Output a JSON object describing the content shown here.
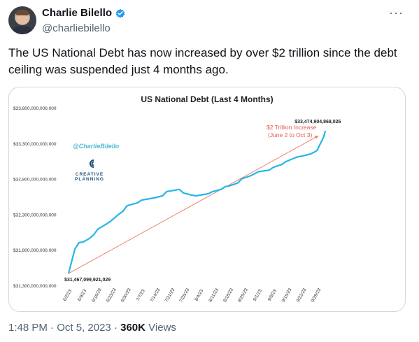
{
  "author": {
    "display_name": "Charlie Bilello",
    "handle": "@charliebilello"
  },
  "tweet": {
    "text": "The US National Debt has now increased by over $2 trillion since the debt ceiling was suspended just 4 months ago.",
    "time": "1:48 PM",
    "dot": "·",
    "date": "Oct 5, 2023",
    "views_count": "360K",
    "views_label": "Views",
    "more_icon": "more-icon"
  },
  "chart_data": {
    "type": "line",
    "title": "US National Debt (Last 4 Months)",
    "watermark": "@CharlieBilello",
    "logo_text": [
      "CREATIVE",
      "PLANNING"
    ],
    "y_ticks": [
      "$33,800,000,000,000",
      "$33,300,000,000,000",
      "$32,800,000,000,000",
      "$32,300,000,000,000",
      "$31,800,000,000,000",
      "$31,300,000,000,000"
    ],
    "ylim": [
      31300000000000,
      33800000000000
    ],
    "x_ticks": [
      "6/2/23",
      "6/9/23",
      "6/16/23",
      "6/23/23",
      "6/30/23",
      "7/7/23",
      "7/14/23",
      "7/21/23",
      "7/28/23",
      "8/4/23",
      "8/11/23",
      "8/18/23",
      "8/25/23",
      "9/1/23",
      "9/8/23",
      "9/15/23",
      "9/22/23",
      "9/29/23"
    ],
    "line_color": "#27b6e6",
    "trend_color": "#f08073",
    "start_label": "$31,467,099,921,029",
    "end_label": "$33,474,904,868,026",
    "annotation": [
      "$2 Trillion Increase",
      "(June 2 to Oct 3)"
    ],
    "annotation_color": "#e8574a",
    "series": [
      {
        "x": [
          "6/2/23",
          "6/5/23",
          "6/7/23",
          "6/9/23",
          "6/12/23",
          "6/14/23",
          "6/16/23",
          "6/20/23",
          "6/22/23",
          "6/26/23",
          "6/28/23",
          "6/30/23",
          "7/5/23",
          "7/7/23",
          "7/11/23",
          "7/13/23",
          "7/17/23",
          "7/19/23",
          "7/21/23",
          "7/25/23",
          "7/27/23",
          "7/31/23",
          "8/2/23",
          "8/4/23",
          "8/8/23",
          "8/10/23",
          "8/14/23",
          "8/16/23",
          "8/18/23",
          "8/22/23",
          "8/24/23",
          "8/28/23",
          "8/30/23",
          "9/1/23",
          "9/6/23",
          "9/8/23",
          "9/12/23",
          "9/14/23",
          "9/18/23",
          "9/20/23",
          "9/22/23",
          "9/26/23",
          "9/28/23",
          "9/29/23",
          "10/2/23",
          "10/3/23"
        ],
        "values": [
          31467099921029,
          31810000000000,
          31900000000000,
          31910000000000,
          31960000000000,
          32010000000000,
          32090000000000,
          32160000000000,
          32200000000000,
          32300000000000,
          32340000000000,
          32420000000000,
          32460000000000,
          32500000000000,
          32520000000000,
          32530000000000,
          32560000000000,
          32620000000000,
          32630000000000,
          32650000000000,
          32600000000000,
          32570000000000,
          32560000000000,
          32570000000000,
          32590000000000,
          32620000000000,
          32650000000000,
          32690000000000,
          32700000000000,
          32740000000000,
          32800000000000,
          32840000000000,
          32870000000000,
          32900000000000,
          32920000000000,
          32960000000000,
          33000000000000,
          33040000000000,
          33090000000000,
          33110000000000,
          33120000000000,
          33150000000000,
          33180000000000,
          33200000000000,
          33380000000000,
          33474904868026
        ]
      }
    ]
  }
}
